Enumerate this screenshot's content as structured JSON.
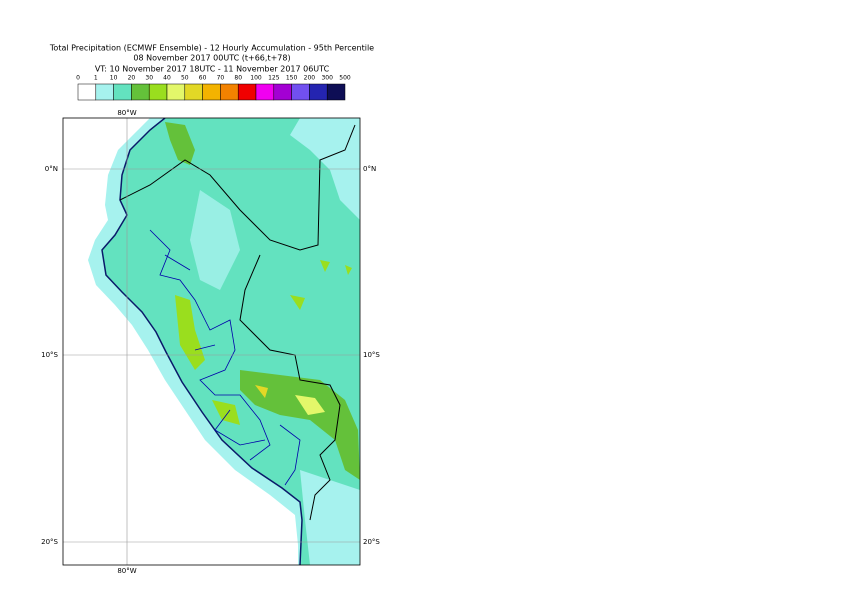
{
  "header": {
    "title": "Total Precipitation (ECMWF Ensemble) - 12 Hourly Accumulation - 95th Percentile",
    "base_time": "08 November 2017 00UTC (t+66,t+78)",
    "valid_time": "VT: 10 November 2017 18UTC - 11 November 2017 06UTC"
  },
  "legend": {
    "labels": [
      "0",
      "1",
      "10",
      "20",
      "30",
      "40",
      "50",
      "60",
      "70",
      "80",
      "100",
      "125",
      "150",
      "200",
      "300",
      "500"
    ],
    "colors": [
      "#ffffff",
      "#a6f2ee",
      "#63e2bf",
      "#64c13a",
      "#9ade1e",
      "#e3f76a",
      "#e2d826",
      "#f3b300",
      "#f38200",
      "#f00000",
      "#f000f0",
      "#a300d3",
      "#7150f0",
      "#2424b0",
      "#0e0e55"
    ]
  },
  "map": {
    "lon_labels": [
      "80°W"
    ],
    "lat_labels": [
      "0°N",
      "10°S",
      "20°S"
    ]
  }
}
